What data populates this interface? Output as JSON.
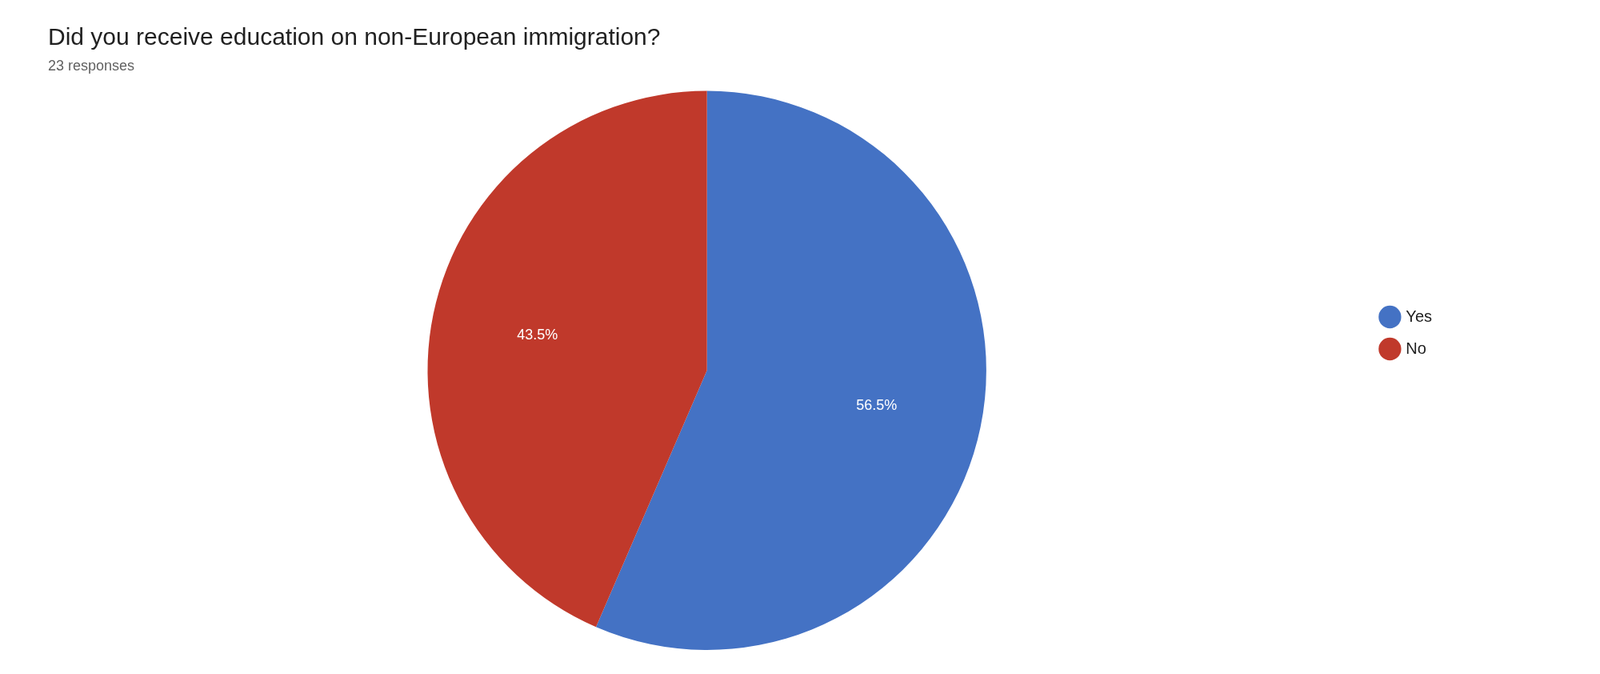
{
  "chart_data": {
    "type": "pie",
    "title": "Did you receive education on non-European immigration?",
    "subtitle": "23 responses",
    "categories": [
      "Yes",
      "No"
    ],
    "values": [
      56.5,
      43.5
    ],
    "value_labels": [
      "56.5%",
      "43.5%"
    ],
    "colors": [
      "#4472C4",
      "#C0392B"
    ],
    "data_labels": true,
    "legend": "right"
  }
}
